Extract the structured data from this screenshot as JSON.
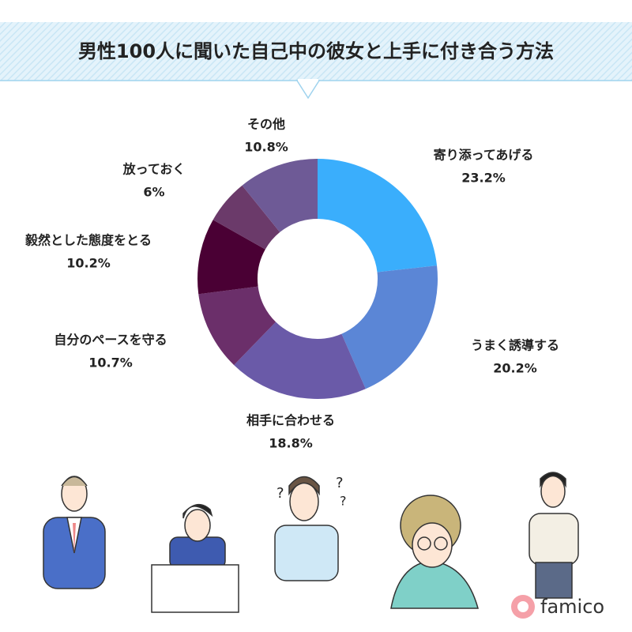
{
  "chart_data": {
    "type": "donut",
    "title": "男性100人に聞いた自己中の彼女と上手に付き合う方法",
    "categories": [
      "寄り添ってあげる",
      "うまく誘導する",
      "相手に合わせる",
      "自分のペースを守る",
      "毅然とした態度をとる",
      "放っておく",
      "その他"
    ],
    "values": [
      23.2,
      20.2,
      18.8,
      10.7,
      10.2,
      6,
      10.8
    ],
    "value_labels": [
      "23.2%",
      "20.2%",
      "18.8%",
      "10.7%",
      "10.2%",
      "6%",
      "10.8%"
    ],
    "colors": [
      "#3aaefc",
      "#5b86d6",
      "#6a5aa8",
      "#6b2f6a",
      "#4a0034",
      "#6b3a6a",
      "#6e5a96"
    ]
  },
  "brand": "famico"
}
